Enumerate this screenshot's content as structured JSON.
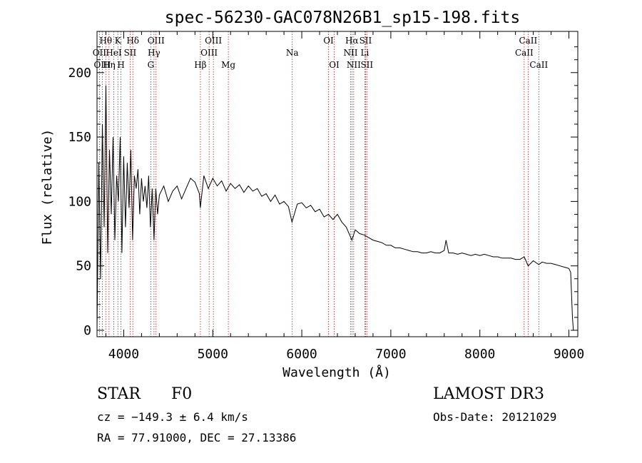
{
  "chart_data": {
    "type": "line",
    "title": "spec-56230-GAC078N26B1_sp15-198.fits",
    "xlabel": "Wavelength (Å)",
    "ylabel": "Flux (relative)",
    "xlim": [
      3700,
      9100
    ],
    "ylim": [
      -5,
      232
    ],
    "xticks": [
      4000,
      5000,
      6000,
      7000,
      8000,
      9000
    ],
    "xtick_labels": [
      "4000",
      "5000",
      "6000",
      "7000",
      "8000",
      "9000"
    ],
    "yticks": [
      0,
      50,
      100,
      150,
      200
    ],
    "ytick_labels": [
      "0",
      "50",
      "100",
      "150",
      "200"
    ],
    "series": [
      {
        "name": "flux",
        "x": [
          3700,
          3720,
          3740,
          3760,
          3780,
          3800,
          3820,
          3840,
          3860,
          3880,
          3900,
          3920,
          3940,
          3960,
          3980,
          4000,
          4020,
          4040,
          4060,
          4080,
          4100,
          4120,
          4140,
          4160,
          4180,
          4200,
          4220,
          4240,
          4260,
          4280,
          4300,
          4320,
          4340,
          4360,
          4380,
          4400,
          4450,
          4500,
          4550,
          4600,
          4650,
          4700,
          4750,
          4800,
          4850,
          4860,
          4900,
          4950,
          5000,
          5050,
          5100,
          5150,
          5200,
          5250,
          5300,
          5350,
          5400,
          5450,
          5500,
          5550,
          5600,
          5650,
          5700,
          5750,
          5800,
          5850,
          5890,
          5950,
          6000,
          6050,
          6100,
          6150,
          6200,
          6250,
          6300,
          6350,
          6400,
          6450,
          6500,
          6563,
          6600,
          6650,
          6700,
          6750,
          6800,
          6850,
          6900,
          6950,
          7000,
          7050,
          7100,
          7150,
          7200,
          7250,
          7300,
          7350,
          7400,
          7450,
          7500,
          7550,
          7600,
          7620,
          7650,
          7700,
          7750,
          7800,
          7850,
          7900,
          7950,
          8000,
          8050,
          8100,
          8150,
          8200,
          8250,
          8300,
          8350,
          8400,
          8450,
          8498,
          8542,
          8600,
          8662,
          8700,
          8750,
          8800,
          8850,
          8900,
          8950,
          9000,
          9020,
          9040,
          9050,
          9060
        ],
        "y": [
          0,
          130,
          40,
          160,
          80,
          190,
          60,
          140,
          90,
          150,
          70,
          120,
          100,
          150,
          60,
          135,
          80,
          130,
          95,
          140,
          70,
          120,
          110,
          125,
          90,
          118,
          100,
          112,
          95,
          120,
          80,
          110,
          70,
          110,
          90,
          105,
          112,
          100,
          108,
          112,
          102,
          110,
          118,
          115,
          106,
          95,
          120,
          110,
          118,
          112,
          116,
          108,
          114,
          110,
          113,
          107,
          112,
          108,
          110,
          104,
          106,
          100,
          105,
          98,
          100,
          96,
          84,
          98,
          99,
          95,
          97,
          92,
          94,
          88,
          90,
          86,
          90,
          84,
          80,
          70,
          78,
          75,
          74,
          72,
          70,
          69,
          68,
          66,
          66,
          64,
          64,
          63,
          62,
          61,
          61,
          60,
          60,
          61,
          60,
          60,
          62,
          70,
          60,
          60,
          59,
          60,
          59,
          58,
          59,
          58,
          59,
          58,
          57,
          57,
          56,
          56,
          56,
          55,
          55,
          57,
          50,
          54,
          51,
          53,
          52,
          52,
          51,
          50,
          49,
          48,
          45,
          10,
          0,
          0
        ]
      }
    ],
    "lines": [
      {
        "label": "Hθ",
        "wave": 3798,
        "row": 1
      },
      {
        "label": "OII",
        "wave": 3727,
        "row": 2
      },
      {
        "label": "OIII",
        "wave": 3760,
        "row": 3
      },
      {
        "label": "K",
        "wave": 3934,
        "row": 1
      },
      {
        "label": "HeI",
        "wave": 3889,
        "row": 2
      },
      {
        "label": "Hη",
        "wave": 3835,
        "row": 3
      },
      {
        "label": "SII",
        "wave": 4072,
        "row": 2
      },
      {
        "label": "H",
        "wave": 3969,
        "row": 3
      },
      {
        "label": "Hδ",
        "wave": 4102,
        "row": 1
      },
      {
        "label": "OIII",
        "wave": 4363,
        "row": 1
      },
      {
        "label": "Hγ",
        "wave": 4340,
        "row": 2
      },
      {
        "label": "G",
        "wave": 4304,
        "row": 3
      },
      {
        "label": "Hβ",
        "wave": 4861,
        "row": 3
      },
      {
        "label": "OIII",
        "wave": 5007,
        "row": 1
      },
      {
        "label": "OIII",
        "wave": 4959,
        "row": 2
      },
      {
        "label": "Mg",
        "wave": 5175,
        "row": 3
      },
      {
        "label": "Na",
        "wave": 5893,
        "row": 2
      },
      {
        "label": "OI",
        "wave": 6300,
        "row": 1
      },
      {
        "label": "OI",
        "wave": 6364,
        "row": 3
      },
      {
        "label": "Hα",
        "wave": 6563,
        "row": 1
      },
      {
        "label": "NII",
        "wave": 6548,
        "row": 2
      },
      {
        "label": "NII",
        "wave": 6583,
        "row": 3
      },
      {
        "label": "SII",
        "wave": 6716,
        "row": 1
      },
      {
        "label": "Li",
        "wave": 6708,
        "row": 2
      },
      {
        "label": "SII",
        "wave": 6731,
        "row": 3
      },
      {
        "label": "CaII",
        "wave": 8542,
        "row": 1
      },
      {
        "label": "CaII",
        "wave": 8498,
        "row": 2
      },
      {
        "label": "CaII",
        "wave": 8662,
        "row": 3
      }
    ]
  },
  "info": {
    "object_class": "STAR",
    "subclass": "F0",
    "survey": "LAMOST DR3",
    "redshift": "cz = −149.3 ± 6.4 km/s",
    "obs_date": "Obs-Date: 20121029",
    "coords": "RA =  77.91000, DEC =  27.13386"
  },
  "colors": {
    "spectrum": "#000000",
    "line_markers": "#b22222",
    "axes": "#000000"
  }
}
